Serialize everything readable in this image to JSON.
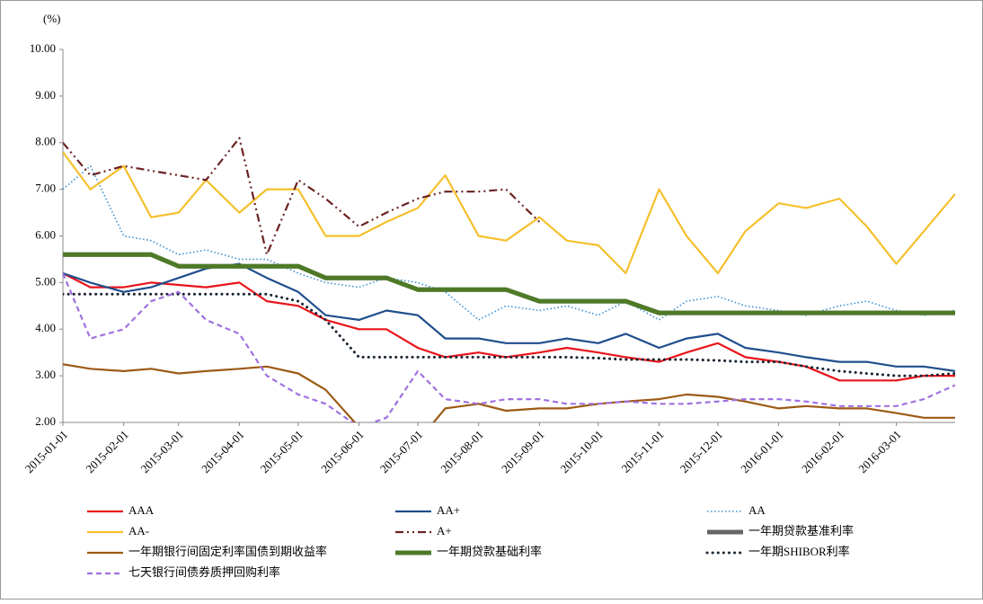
{
  "chart_data": {
    "type": "line",
    "unit": "(%)",
    "x": [
      "2015-01-01",
      "2015-01-15",
      "2015-02-01",
      "2015-02-15",
      "2015-03-01",
      "2015-03-15",
      "2015-04-01",
      "2015-04-15",
      "2015-05-01",
      "2015-05-15",
      "2015-06-01",
      "2015-06-15",
      "2015-07-01",
      "2015-07-15",
      "2015-08-01",
      "2015-08-15",
      "2015-09-01",
      "2015-09-15",
      "2015-10-01",
      "2015-10-15",
      "2015-11-01",
      "2015-11-15",
      "2015-12-01",
      "2015-12-15",
      "2016-01-01",
      "2016-01-15",
      "2016-02-01",
      "2016-02-15",
      "2016-03-01",
      "2016-03-15",
      "2016-03-31"
    ],
    "xlim": [
      "2015-01-01",
      "2016-03-31"
    ],
    "xticks": [
      "2015-01-01",
      "2015-02-01",
      "2015-03-01",
      "2015-04-01",
      "2015-05-01",
      "2015-06-01",
      "2015-07-01",
      "2015-08-01",
      "2015-09-01",
      "2015-10-01",
      "2015-11-01",
      "2015-12-01",
      "2016-01-01",
      "2016-02-01",
      "2016-03-01"
    ],
    "ylim": [
      2,
      10
    ],
    "yticks": [
      {
        "value": 2,
        "label": "2.00"
      },
      {
        "value": 3,
        "label": "3.00"
      },
      {
        "value": 4,
        "label": "4.00"
      },
      {
        "value": 5,
        "label": "5.00"
      },
      {
        "value": 6,
        "label": "6.00"
      },
      {
        "value": 7,
        "label": "7.00"
      },
      {
        "value": 8,
        "label": "8.00"
      },
      {
        "value": 9,
        "label": "9.00"
      },
      {
        "value": 10,
        "label": "10.00"
      }
    ],
    "series": [
      {
        "name": "AAA",
        "color": "#e8141b",
        "style": "solid",
        "values": [
          5.2,
          4.9,
          4.9,
          5.0,
          4.95,
          4.9,
          5.0,
          4.6,
          4.5,
          4.2,
          4.0,
          4.0,
          3.6,
          3.4,
          3.5,
          3.4,
          3.5,
          3.6,
          3.5,
          3.4,
          3.3,
          3.5,
          3.7,
          3.4,
          3.3,
          3.2,
          2.9,
          2.9,
          2.9,
          3.0,
          3.0
        ]
      },
      {
        "name": "AA+",
        "color": "#1f4e8c",
        "style": "solid",
        "values": [
          5.2,
          5.0,
          4.8,
          4.9,
          5.1,
          5.3,
          5.4,
          5.1,
          4.8,
          4.3,
          4.2,
          4.4,
          4.3,
          3.8,
          3.8,
          3.7,
          3.7,
          3.8,
          3.7,
          3.9,
          3.6,
          3.8,
          3.9,
          3.6,
          3.5,
          3.4,
          3.3,
          3.3,
          3.2,
          3.2,
          3.1
        ]
      },
      {
        "name": "AA",
        "color": "#3b8fd0",
        "style": "dotted",
        "values": [
          7.0,
          7.5,
          6.0,
          5.9,
          5.6,
          5.7,
          5.5,
          5.5,
          5.2,
          5.0,
          4.9,
          5.1,
          5.0,
          4.8,
          4.2,
          4.5,
          4.4,
          4.5,
          4.3,
          4.6,
          4.2,
          4.6,
          4.7,
          4.5,
          4.4,
          4.3,
          4.5,
          4.6,
          4.4,
          4.3,
          4.4
        ]
      },
      {
        "name": "AA-",
        "color": "#f5c02c",
        "style": "solid",
        "values": [
          7.8,
          7.0,
          7.5,
          6.4,
          6.5,
          7.2,
          6.5,
          7.0,
          7.0,
          6.0,
          6.0,
          6.3,
          6.6,
          7.3,
          6.0,
          5.9,
          6.4,
          5.9,
          5.8,
          5.2,
          7.0,
          6.0,
          5.2,
          6.1,
          6.7,
          6.6,
          6.8,
          6.2,
          5.4,
          6.1,
          6.9
        ]
      },
      {
        "name": "A+",
        "color": "#6b2222",
        "style": "dashdot",
        "values": [
          8.0,
          7.3,
          7.5,
          7.4,
          7.3,
          7.2,
          8.1,
          5.6,
          7.2,
          6.8,
          6.2,
          6.5,
          6.8,
          6.95,
          6.95,
          7.0,
          6.3,
          null,
          null,
          null,
          null,
          null,
          null,
          null,
          null,
          null,
          null,
          null,
          null,
          null,
          null
        ]
      },
      {
        "name": "一年期贷款基准利率",
        "color": "#666666",
        "style": "thick",
        "values": [
          5.6,
          5.6,
          5.6,
          5.6,
          5.35,
          5.35,
          5.35,
          5.35,
          5.35,
          5.1,
          5.1,
          5.1,
          4.85,
          4.85,
          4.85,
          4.85,
          4.6,
          4.6,
          4.6,
          4.6,
          4.35,
          4.35,
          4.35,
          4.35,
          4.35,
          4.35,
          4.35,
          4.35,
          4.35,
          4.35,
          4.35
        ]
      },
      {
        "name": "一年期银行间固定利率国债到期收益率",
        "color": "#9c5a14",
        "style": "solid",
        "values": [
          3.25,
          3.15,
          3.1,
          3.15,
          3.05,
          3.1,
          3.15,
          3.2,
          3.05,
          2.7,
          1.9,
          1.7,
          1.6,
          2.3,
          2.4,
          2.25,
          2.3,
          2.3,
          2.4,
          2.45,
          2.5,
          2.6,
          2.55,
          2.45,
          2.3,
          2.35,
          2.3,
          2.3,
          2.2,
          2.1,
          2.1
        ]
      },
      {
        "name": "一年期贷款基础利率",
        "color": "#4e7a27",
        "style": "thick",
        "values": [
          5.6,
          5.6,
          5.6,
          5.6,
          5.35,
          5.35,
          5.35,
          5.35,
          5.35,
          5.1,
          5.1,
          5.1,
          4.85,
          4.85,
          4.85,
          4.85,
          4.6,
          4.6,
          4.6,
          4.6,
          4.35,
          4.35,
          4.35,
          4.35,
          4.35,
          4.35,
          4.35,
          4.35,
          4.35,
          4.35,
          4.35
        ]
      },
      {
        "name": "一年期SHIBOR利率",
        "color": "#1a2533",
        "style": "bigdot",
        "values": [
          4.75,
          4.75,
          4.75,
          4.75,
          4.75,
          4.75,
          4.75,
          4.75,
          4.6,
          4.2,
          3.4,
          3.4,
          3.4,
          3.4,
          3.4,
          3.4,
          3.4,
          3.4,
          3.38,
          3.35,
          3.35,
          3.35,
          3.33,
          3.3,
          3.3,
          3.2,
          3.1,
          3.05,
          3.0,
          3.0,
          3.05
        ]
      },
      {
        "name": "七天银行间债券质押回购利率",
        "color": "#a070e0",
        "style": "dashed",
        "values": [
          5.2,
          3.8,
          4.0,
          4.6,
          4.8,
          4.2,
          3.9,
          3.0,
          2.6,
          2.4,
          1.9,
          2.1,
          3.1,
          2.5,
          2.4,
          2.5,
          2.5,
          2.4,
          2.4,
          2.45,
          2.4,
          2.4,
          2.45,
          2.5,
          2.5,
          2.45,
          2.35,
          2.35,
          2.35,
          2.5,
          2.8
        ]
      }
    ]
  }
}
